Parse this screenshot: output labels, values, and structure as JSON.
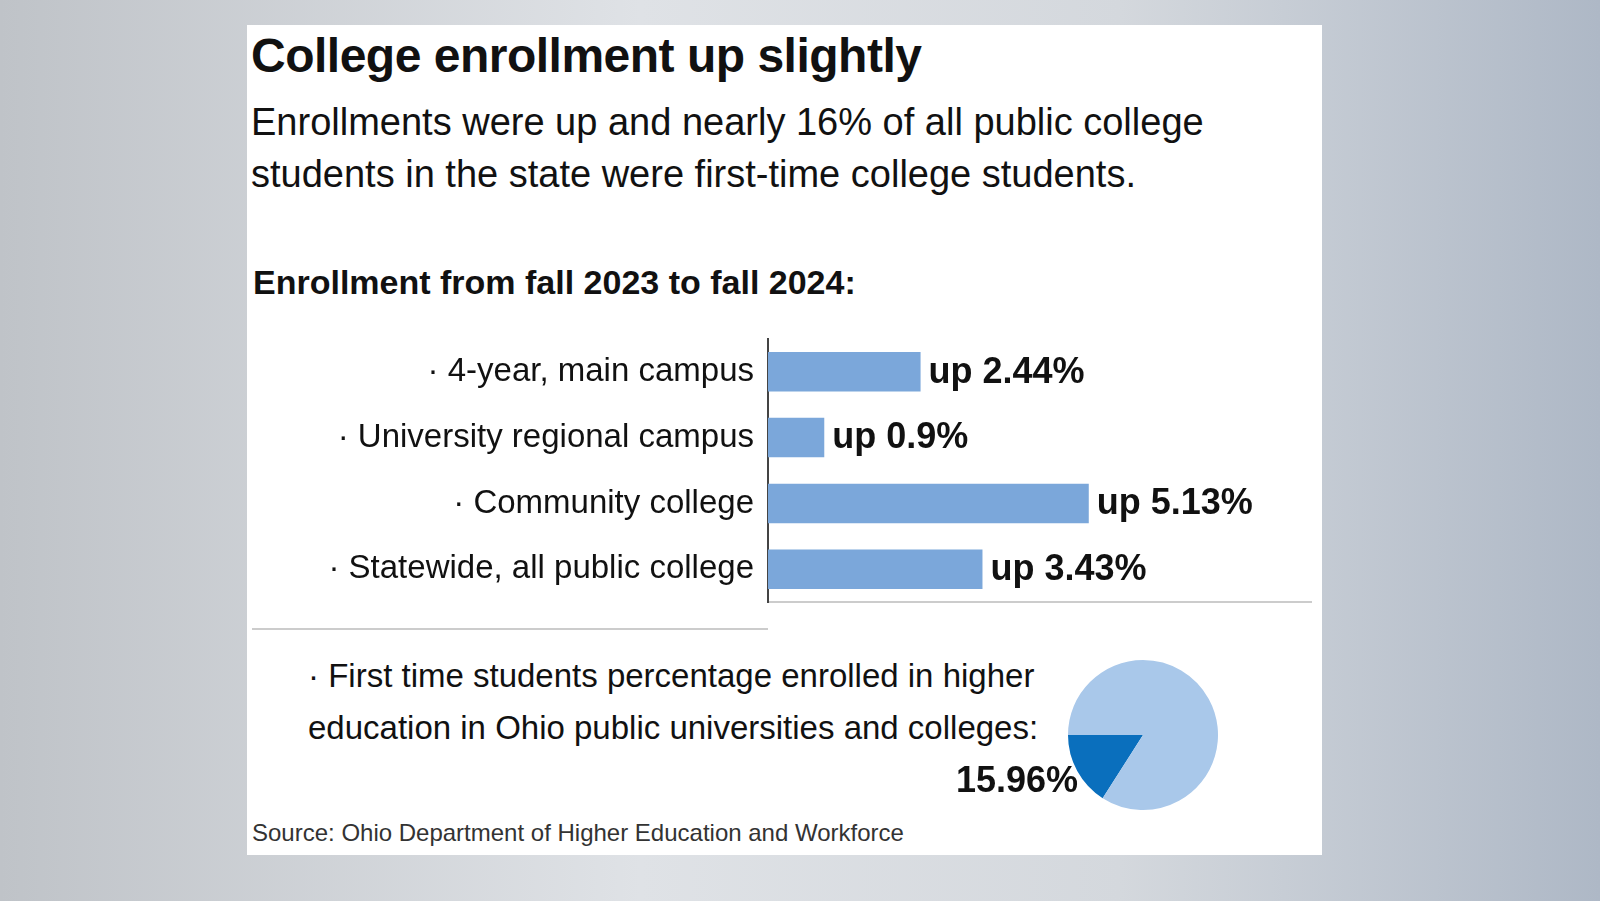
{
  "title": "College enrollment up slightly",
  "subtitle": "Enrollments were up and nearly 16% of all public college students in the state were first-time college students.",
  "source": "Source: Ohio Department of Higher Education and Workforce",
  "chart_data": [
    {
      "type": "bar",
      "title": "Enrollment from fall 2023 to fall 2024:",
      "orientation": "horizontal",
      "categories": [
        "· 4-year, main campus",
        "· University regional campus",
        "· Community college",
        "· Statewide, all public college"
      ],
      "values": [
        2.44,
        0.9,
        5.13,
        3.43
      ],
      "value_labels": [
        "up 2.44%",
        "up 0.9%",
        "up 5.13%",
        "up 3.43%"
      ],
      "color": "#7ba7da",
      "xlim": [
        0,
        8.7
      ],
      "grid": false,
      "data_labels": true,
      "tick_labels": "y"
    },
    {
      "type": "pie",
      "title": "· First time students percentage enrolled in higher education in Ohio public universities and colleges:",
      "values": [
        15.96,
        84.04
      ],
      "value_labels": [
        "15.96%",
        null
      ],
      "colors": [
        "#0a6fbd",
        "#a9c8ea"
      ],
      "data_labels": true
    }
  ]
}
